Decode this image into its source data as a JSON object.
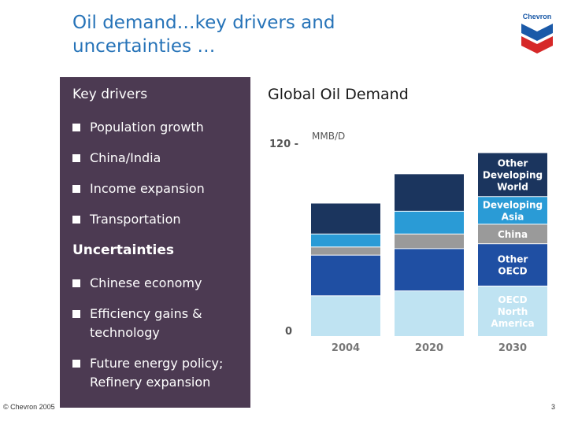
{
  "slide": {
    "title_line1": "Oil demand…key drivers and",
    "title_line2": "uncertainties …",
    "page_number": "3"
  },
  "logo": {
    "text": "Chevron"
  },
  "footer": {
    "copyright": "© Chevron 2005"
  },
  "key_drivers": {
    "heading": "Key drivers",
    "items": [
      "Population growth",
      "China/India",
      "Income expansion",
      "Transportation"
    ]
  },
  "uncertainties": {
    "heading": "Uncertainties",
    "items": [
      [
        "Chinese economy"
      ],
      [
        "Efficiency gains &",
        "technology"
      ],
      [
        "Future energy policy;",
        "Refinery expansion"
      ]
    ]
  },
  "chart_data": {
    "type": "bar",
    "stacked": true,
    "title": "Global Oil Demand",
    "ylabel": "MMB/D",
    "ylim": [
      0,
      120
    ],
    "yticks": [
      "0",
      "120 -"
    ],
    "categories": [
      "2004",
      "2020",
      "2030"
    ],
    "series": [
      {
        "name": "OECD North America",
        "label_lines": [
          "OECD",
          "North",
          "America"
        ],
        "color": "#bfe3f2",
        "values": [
          25,
          28,
          31
        ]
      },
      {
        "name": "Other OECD",
        "label_lines": [
          "Other",
          "OECD"
        ],
        "color": "#1f4fa3",
        "values": [
          25,
          26,
          26
        ]
      },
      {
        "name": "China",
        "label_lines": [
          "China"
        ],
        "color": "#9a9a9a",
        "values": [
          5,
          9,
          12
        ]
      },
      {
        "name": "Developing Asia",
        "label_lines": [
          "Developing",
          "Asia"
        ],
        "color": "#2a9bd6",
        "values": [
          8,
          14,
          17
        ]
      },
      {
        "name": "Other Developing World",
        "label_lines": [
          "Other",
          "Developing",
          "World"
        ],
        "color": "#1b355e",
        "values": [
          19,
          23,
          27
        ]
      }
    ],
    "colors": {
      "panel_bg": "#4c3a52",
      "title": "#2673b8"
    }
  }
}
